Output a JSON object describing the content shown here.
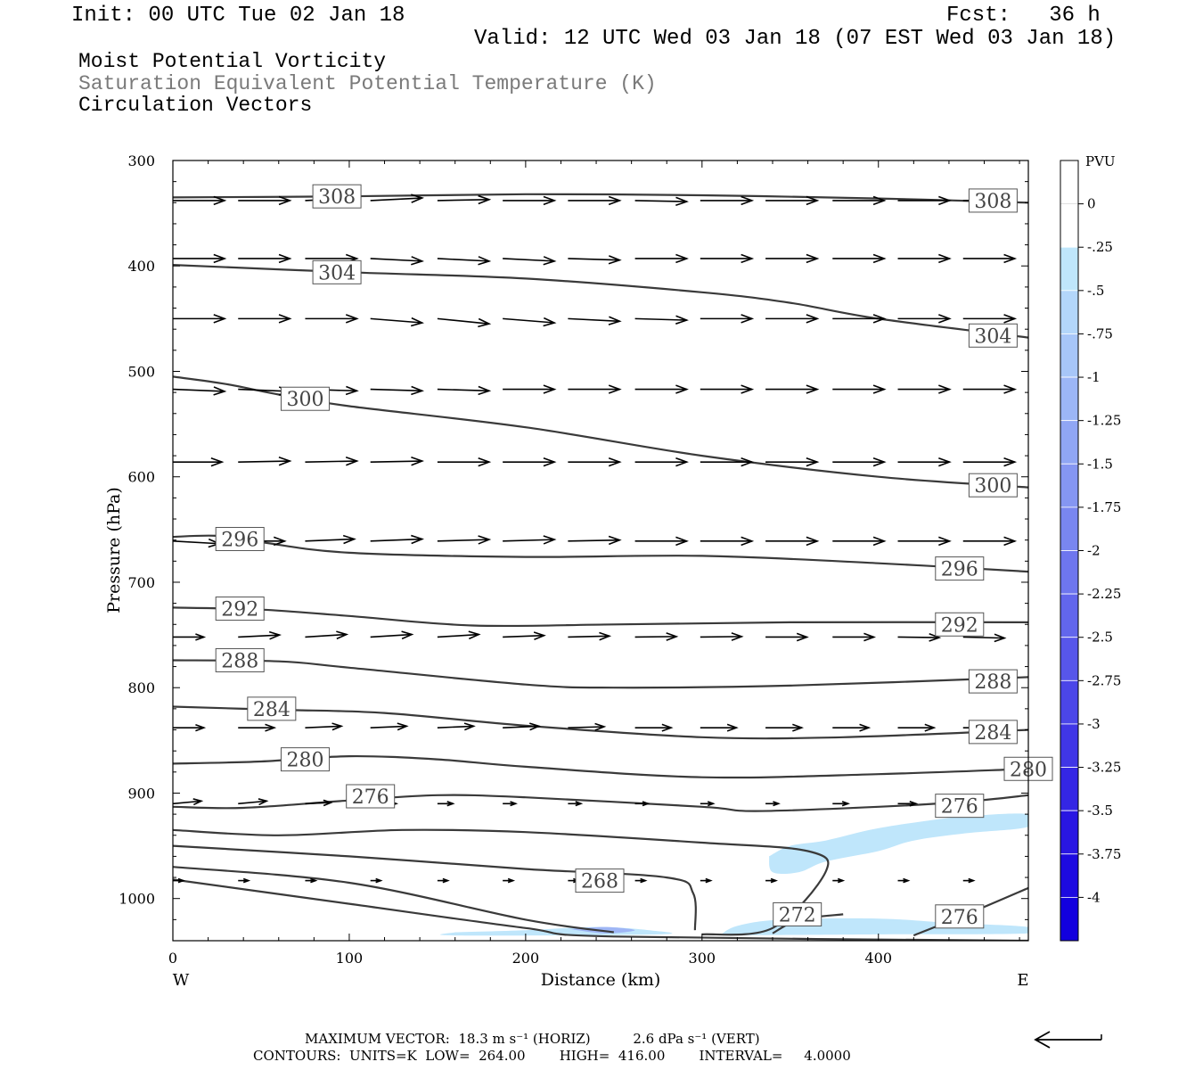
{
  "header": {
    "init": "Init: 00 UTC Tue 02 Jan 18",
    "fcst": "Fcst:   36 h",
    "valid": "Valid: 12 UTC Wed 03 Jan 18 (07 EST Wed 03 Jan 18)"
  },
  "titles": {
    "line1": "Moist Potential Vorticity",
    "line2": "Saturation Equivalent Potential Temperature (K)",
    "line3": "Circulation Vectors"
  },
  "footer": {
    "max_vector": "MAXIMUM VECTOR:  18.3 m s⁻¹ (HORIZ)          2.6 dPa s⁻¹ (VERT)",
    "contours": "CONTOURS:  UNITS=K  LOW=  264.00        HIGH=  416.00        INTERVAL=     4.0000"
  },
  "colors": {
    "contour": "#3a3a3a",
    "vector": "#000000",
    "pv_light": "#bfe6fb",
    "pv_mid": "#9fb6f5"
  },
  "chart_data": {
    "type": "cross-section",
    "xlabel": "Distance (km)",
    "ylabel": "Pressure (hPa)",
    "xlim": [
      0,
      485
    ],
    "ylim": [
      300,
      1040
    ],
    "y_inverted": true,
    "x_ticks": [
      0,
      100,
      200,
      300,
      400
    ],
    "y_ticks": [
      300,
      400,
      500,
      600,
      700,
      800,
      900,
      1000
    ],
    "x_end_labels": {
      "left": "W",
      "right": "E"
    },
    "colorbar": {
      "unit": "PVU",
      "labels": [
        "0",
        "-.25",
        "-.5",
        "-.75",
        "-1",
        "-1.25",
        "-1.5",
        "-1.75",
        "-2",
        "-2.25",
        "-2.5",
        "-2.75",
        "-3",
        "-3.25",
        "-3.5",
        "-3.75",
        "-4"
      ],
      "colors": [
        "#ffffff",
        "#bfe6fb",
        "#b3d6fa",
        "#a7c6f8",
        "#9cb6f6",
        "#90a6f4",
        "#8596f2",
        "#7986f0",
        "#6e76ee",
        "#6266ec",
        "#5756ea",
        "#4b46e8",
        "#4036e6",
        "#3426e4",
        "#2916e2",
        "#1d0ae0",
        "#1200de"
      ]
    },
    "theta_contours": [
      {
        "label": "308",
        "points": [
          [
            0,
            335
          ],
          [
            100,
            334
          ],
          [
            200,
            332
          ],
          [
            300,
            333
          ],
          [
            400,
            336
          ],
          [
            485,
            340
          ]
        ],
        "label_at": [
          [
            93,
            334
          ],
          [
            465,
            338
          ]
        ]
      },
      {
        "label": "304",
        "points": [
          [
            0,
            399
          ],
          [
            100,
            406
          ],
          [
            200,
            412
          ],
          [
            300,
            425
          ],
          [
            350,
            435
          ],
          [
            400,
            450
          ],
          [
            485,
            468
          ]
        ],
        "label_at": [
          [
            93,
            406
          ],
          [
            465,
            466
          ]
        ]
      },
      {
        "label": "300",
        "points": [
          [
            0,
            505
          ],
          [
            30,
            512
          ],
          [
            60,
            522
          ],
          [
            100,
            533
          ],
          [
            200,
            553
          ],
          [
            300,
            580
          ],
          [
            400,
            600
          ],
          [
            485,
            610
          ]
        ],
        "label_at": [
          [
            75,
            526
          ],
          [
            465,
            608
          ]
        ]
      },
      {
        "label": "296",
        "points": [
          [
            0,
            657
          ],
          [
            25,
            656
          ],
          [
            50,
            662
          ],
          [
            100,
            672
          ],
          [
            200,
            676
          ],
          [
            300,
            675
          ],
          [
            400,
            682
          ],
          [
            485,
            690
          ]
        ],
        "label_at": [
          [
            38,
            659
          ],
          [
            446,
            687
          ]
        ]
      },
      {
        "label": "292",
        "points": [
          [
            0,
            724
          ],
          [
            50,
            726
          ],
          [
            100,
            732
          ],
          [
            170,
            741
          ],
          [
            250,
            740
          ],
          [
            350,
            738
          ],
          [
            485,
            738
          ]
        ],
        "label_at": [
          [
            38,
            725
          ],
          [
            446,
            740
          ]
        ]
      },
      {
        "label": "288",
        "points": [
          [
            0,
            774
          ],
          [
            60,
            775
          ],
          [
            100,
            781
          ],
          [
            200,
            797
          ],
          [
            250,
            800
          ],
          [
            350,
            798
          ],
          [
            485,
            790
          ]
        ],
        "label_at": [
          [
            38,
            774
          ],
          [
            465,
            794
          ]
        ]
      },
      {
        "label": "284",
        "points": [
          [
            0,
            818
          ],
          [
            60,
            821
          ],
          [
            120,
            824
          ],
          [
            200,
            836
          ],
          [
            300,
            847
          ],
          [
            380,
            847
          ],
          [
            485,
            840
          ]
        ],
        "label_at": [
          [
            56,
            820
          ],
          [
            465,
            842
          ]
        ]
      },
      {
        "label": "280",
        "points": [
          [
            0,
            872
          ],
          [
            50,
            870
          ],
          [
            100,
            865
          ],
          [
            150,
            868
          ],
          [
            200,
            875
          ],
          [
            300,
            885
          ],
          [
            400,
            882
          ],
          [
            485,
            877
          ]
        ],
        "label_at": [
          [
            75,
            868
          ],
          [
            485,
            877
          ]
        ]
      },
      {
        "label": "276",
        "points": [
          [
            0,
            913
          ],
          [
            40,
            914
          ],
          [
            100,
            907
          ],
          [
            150,
            902
          ],
          [
            200,
            904
          ],
          [
            300,
            913
          ],
          [
            330,
            917
          ],
          [
            400,
            913
          ],
          [
            450,
            908
          ],
          [
            485,
            902
          ]
        ],
        "label_at": [
          [
            112,
            903
          ],
          [
            446,
            912
          ]
        ]
      },
      {
        "label": "",
        "points": [
          [
            0,
            935
          ],
          [
            60,
            940
          ],
          [
            130,
            935
          ],
          [
            200,
            937
          ],
          [
            300,
            947
          ],
          [
            360,
            955
          ],
          [
            370,
            975
          ],
          [
            340,
            1028
          ],
          [
            300,
            1034
          ]
        ],
        "label_at": []
      },
      {
        "label": "268",
        "points": [
          [
            0,
            950
          ],
          [
            100,
            960
          ],
          [
            200,
            972
          ],
          [
            280,
            980
          ],
          [
            295,
            995
          ],
          [
            296,
            1030
          ]
        ],
        "label_at": [
          [
            242,
            983
          ]
        ]
      },
      {
        "label": "272",
        "points": [
          [
            340,
            1033
          ],
          [
            355,
            1020
          ],
          [
            380,
            1015
          ]
        ],
        "label_at": [
          [
            354,
            1015
          ]
        ]
      },
      {
        "label": "",
        "points": [
          [
            0,
            970
          ],
          [
            100,
            985
          ],
          [
            200,
            1020
          ],
          [
            250,
            1032
          ]
        ],
        "label_at": []
      },
      {
        "label": "276",
        "points": [
          [
            420,
            1035
          ],
          [
            450,
            1015
          ],
          [
            485,
            990
          ]
        ],
        "label_at": [
          [
            446,
            1017
          ]
        ]
      },
      {
        "label": "",
        "points": [
          [
            0,
            982
          ],
          [
            100,
            1005
          ],
          [
            200,
            1028
          ],
          [
            250,
            1036
          ],
          [
            485,
            1040
          ]
        ],
        "label_at": []
      }
    ],
    "pv_regions": [
      {
        "value": -0.3,
        "points": [
          [
            338,
            960
          ],
          [
            350,
            950
          ],
          [
            370,
            945
          ],
          [
            395,
            935
          ],
          [
            420,
            928
          ],
          [
            450,
            922
          ],
          [
            485,
            920
          ],
          [
            485,
            932
          ],
          [
            450,
            938
          ],
          [
            420,
            945
          ],
          [
            400,
            955
          ],
          [
            370,
            965
          ],
          [
            355,
            975
          ],
          [
            340,
            975
          ]
        ]
      },
      {
        "value": -0.3,
        "points": [
          [
            310,
            1035
          ],
          [
            320,
            1026
          ],
          [
            345,
            1020
          ],
          [
            400,
            1019
          ],
          [
            440,
            1023
          ],
          [
            485,
            1027
          ],
          [
            485,
            1033
          ],
          [
            400,
            1034
          ]
        ]
      },
      {
        "value": -0.3,
        "points": [
          [
            160,
            1032
          ],
          [
            200,
            1030
          ],
          [
            240,
            1027
          ],
          [
            270,
            1030
          ],
          [
            275,
            1034
          ],
          [
            160,
            1035
          ]
        ]
      },
      {
        "value": -0.6,
        "points": [
          [
            225,
            1029
          ],
          [
            245,
            1027
          ],
          [
            262,
            1030
          ],
          [
            245,
            1033
          ]
        ]
      }
    ],
    "vectors": {
      "rows": [
        {
          "p": 338,
          "u": [
            1.0,
            1.0,
            1.0,
            1.0,
            1.0,
            1.0,
            1.0,
            1.0,
            1.0,
            1.0,
            1.0,
            1.0,
            1.0
          ],
          "w": [
            0.0,
            0.0,
            -0.05,
            -0.05,
            -0.02,
            0.0,
            0.0,
            0.02,
            0.0,
            0.0,
            0.0,
            0.0,
            -0.02
          ]
        },
        {
          "p": 393,
          "u": [
            1.0,
            1.0,
            1.0,
            1.0,
            1.0,
            1.0,
            1.0,
            1.0,
            1.0,
            1.0,
            1.0,
            1.0,
            1.0
          ],
          "w": [
            0.0,
            0.0,
            0.0,
            0.05,
            0.05,
            0.05,
            0.03,
            0.0,
            0.0,
            0.0,
            0.0,
            0.0,
            0.0
          ]
        },
        {
          "p": 450,
          "u": [
            1.0,
            1.0,
            1.0,
            1.0,
            1.0,
            1.0,
            1.0,
            1.0,
            1.0,
            1.0,
            1.0,
            1.0,
            1.0
          ],
          "w": [
            0.0,
            0.0,
            0.0,
            0.08,
            0.1,
            0.08,
            0.05,
            0.03,
            0.0,
            0.0,
            0.0,
            0.0,
            0.0
          ]
        },
        {
          "p": 517,
          "u": [
            1.0,
            1.0,
            1.0,
            1.0,
            1.0,
            1.0,
            1.0,
            1.0,
            1.0,
            1.0,
            1.0,
            1.0,
            1.0
          ],
          "w": [
            0.04,
            0.04,
            0.03,
            0.03,
            0.03,
            0.0,
            0.0,
            0.0,
            0.0,
            0.0,
            0.0,
            0.0,
            0.0
          ]
        },
        {
          "p": 586,
          "u": [
            0.95,
            1.0,
            1.0,
            1.0,
            1.0,
            1.0,
            1.0,
            1.0,
            1.0,
            1.0,
            1.0,
            1.0,
            1.0
          ],
          "w": [
            0.0,
            -0.02,
            -0.02,
            -0.02,
            0.0,
            0.0,
            0.0,
            0.0,
            0.0,
            0.0,
            0.0,
            0.0,
            0.0
          ]
        },
        {
          "p": 661,
          "u": [
            0.9,
            0.9,
            0.95,
            1.0,
            1.0,
            1.0,
            1.0,
            1.0,
            1.0,
            1.0,
            1.0,
            1.0,
            1.0
          ],
          "w": [
            0.05,
            0.0,
            -0.04,
            -0.04,
            -0.03,
            -0.03,
            -0.02,
            0.0,
            0.0,
            0.0,
            0.0,
            0.0,
            0.0
          ]
        },
        {
          "p": 752,
          "u": [
            0.6,
            0.8,
            0.8,
            0.8,
            0.8,
            0.8,
            0.8,
            0.8,
            0.8,
            0.8,
            0.8,
            0.8,
            0.8
          ],
          "w": [
            0.0,
            -0.04,
            -0.05,
            -0.05,
            -0.05,
            -0.03,
            -0.02,
            -0.01,
            -0.01,
            0.0,
            0.0,
            0.01,
            0.02
          ]
        },
        {
          "p": 838,
          "u": [
            0.6,
            0.7,
            0.7,
            0.7,
            0.7,
            0.7,
            0.7,
            0.7,
            0.7,
            0.7,
            0.7,
            0.7,
            0.7
          ],
          "w": [
            0.0,
            0.0,
            -0.03,
            -0.03,
            -0.03,
            -0.03,
            -0.02,
            0.0,
            0.0,
            0.0,
            0.0,
            0.0,
            0.0
          ]
        },
        {
          "p": 910,
          "u": [
            0.55,
            0.55,
            0.5,
            0.5,
            0.3,
            0.25,
            0.25,
            0.25,
            0.25,
            0.25,
            0.3,
            0.35,
            0.3
          ],
          "w": [
            -0.05,
            -0.05,
            -0.02,
            0.0,
            0.0,
            0.0,
            0.0,
            0.0,
            0.0,
            0.0,
            0.0,
            0.0,
            0.0
          ]
        },
        {
          "p": 983,
          "u": [
            0.2,
            0.2,
            0.2,
            0.2,
            0.2,
            0.2,
            0.2,
            0.2,
            0.2,
            0.2,
            0.2,
            0.2,
            0.2
          ],
          "w": [
            0.0,
            0.0,
            0.0,
            0.0,
            0.0,
            0.0,
            0.0,
            0.0,
            0.0,
            0.0,
            0.0,
            0.0,
            0.0
          ]
        }
      ],
      "x": [
        0,
        37,
        75,
        112,
        150,
        187,
        224,
        262,
        299,
        336,
        374,
        411,
        448
      ],
      "reference_vector": {
        "horiz": "18.3 m s-1",
        "vert": "2.6 dPa s-1"
      }
    }
  }
}
